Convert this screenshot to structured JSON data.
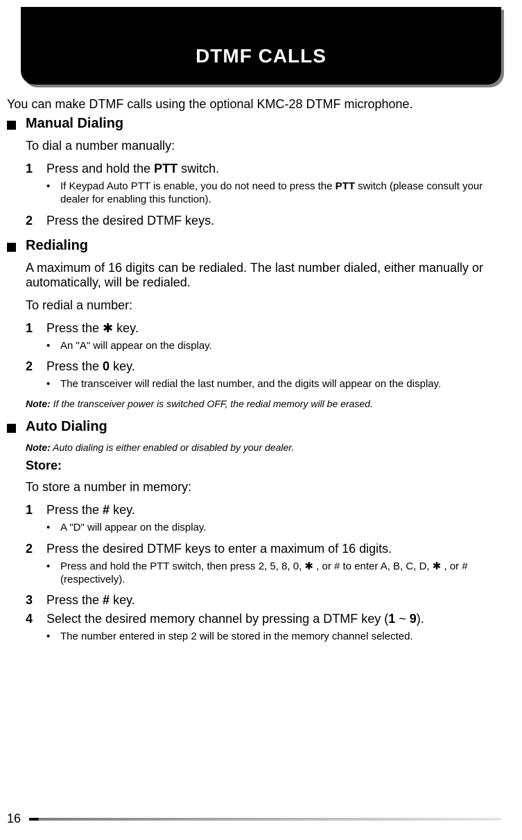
{
  "header": {
    "title": "DTMF CALLS",
    "bg_color": "#000000",
    "text_color": "#ffffff",
    "shadow_color": "#808080"
  },
  "intro": "You can make DTMF calls using the optional KMC-28 DTMF microphone.",
  "sections": {
    "manual": {
      "heading": "Manual Dialing",
      "para1": "To dial a number manually:",
      "step1_num": "1",
      "step1_pre": "Press and hold the ",
      "step1_bold": "PTT",
      "step1_post": " switch.",
      "step1_sub_pre": "If Keypad Auto PTT is enable, you do not need to press the ",
      "step1_sub_bold": "PTT",
      "step1_sub_post": " switch (please consult your dealer for enabling this function).",
      "step2_num": "2",
      "step2_text": "Press the desired DTMF keys."
    },
    "redial": {
      "heading": "Redialing",
      "para1": "A maximum of 16 digits can be redialed.  The last number dialed, either manually or automatically, will be redialed.",
      "para2": "To redial a number:",
      "step1_num": "1",
      "step1_pre": "Press the ",
      "step1_star": "✱",
      "step1_post": " key.",
      "step1_sub": "An \"A\" will appear on the display.",
      "step2_num": "2",
      "step2_pre": "Press the ",
      "step2_bold": "0",
      "step2_post": " key.",
      "step2_sub": "The transceiver will redial the last number, and the digits will appear on the display.",
      "note_label": "Note:",
      "note_text": "  If the transceiver power is switched OFF, the redial memory will be erased."
    },
    "auto": {
      "heading": "Auto Dialing",
      "note_label": "Note:",
      "note_text": "  Auto dialing is either enabled or disabled by your dealer.",
      "store_label": "Store:",
      "para1": "To store a number in memory:",
      "step1_num": "1",
      "step1_pre": "Press the ",
      "step1_hash": "#",
      "step1_post": " key.",
      "step1_sub": "A \"D\" will appear on the display.",
      "step2_num": "2",
      "step2_text": "Press the desired DTMF keys to enter a maximum of 16 digits.",
      "step2_sub_pre": "Press and hold the PTT switch, then press 2, 5, 8, 0,  ",
      "step2_sub_star": "✱",
      "step2_sub_mid": " , or ",
      "step2_sub_hash": "#",
      "step2_sub_mid2": " to enter A, B, C, D,  ",
      "step2_sub_star2": "✱",
      "step2_sub_mid3": " , or ",
      "step2_sub_hash2": "#",
      "step2_sub_post": " (respectively).",
      "step3_num": "3",
      "step3_pre": "Press the ",
      "step3_hash": "#",
      "step3_post": " key.",
      "step4_num": "4",
      "step4_pre": "Select the desired memory channel by pressing a DTMF key (",
      "step4_bold1": "1",
      "step4_mid": " ~ ",
      "step4_bold2": "9",
      "step4_post": ").",
      "step4_sub": "The number entered in step 2 will be stored in the memory channel selected."
    }
  },
  "footer": {
    "page_number": "16"
  },
  "bullet_dot": "•"
}
